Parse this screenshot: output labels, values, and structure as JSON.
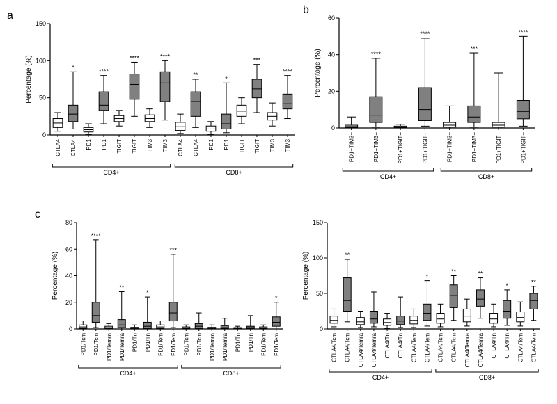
{
  "colors": {
    "bg": "#ffffff",
    "ink": "#000000",
    "box_white": "#ffffff",
    "box_gray": "#808080"
  },
  "typography": {
    "panel_label_fontsize": 16,
    "axis_title_fontsize": 10,
    "tick_fontsize": 9,
    "xcat_fontsize": 8,
    "sig_fontsize": 9
  },
  "panels": {
    "a": {
      "label": "a",
      "type": "boxplot",
      "y_title": "Percentage (%)",
      "ylim": [
        0,
        150
      ],
      "ytick_step": 50,
      "groups": [
        "CD4+",
        "CD8+"
      ],
      "pairs_per_group": 4,
      "categories": [
        "CTLA4",
        "CTLA4",
        "PD1",
        "PD1",
        "TIGIT",
        "TIGIT",
        "TIM3",
        "TIM3",
        "CTLA4",
        "CTLA4",
        "PD1",
        "PD1",
        "TIGIT",
        "TIGIT",
        "TIM3",
        "TIM3"
      ],
      "boxes": [
        {
          "fill": "white",
          "q1": 10,
          "med": 16,
          "q3": 22,
          "lo": 5,
          "hi": 30,
          "sig": ""
        },
        {
          "fill": "gray",
          "q1": 18,
          "med": 28,
          "q3": 40,
          "lo": 8,
          "hi": 85,
          "sig": "*"
        },
        {
          "fill": "white",
          "q1": 4,
          "med": 7,
          "q3": 10,
          "lo": 1,
          "hi": 15,
          "sig": ""
        },
        {
          "fill": "gray",
          "q1": 33,
          "med": 40,
          "q3": 58,
          "lo": 15,
          "hi": 80,
          "sig": "****"
        },
        {
          "fill": "white",
          "q1": 18,
          "med": 22,
          "q3": 26,
          "lo": 12,
          "hi": 33,
          "sig": ""
        },
        {
          "fill": "gray",
          "q1": 48,
          "med": 68,
          "q3": 82,
          "lo": 25,
          "hi": 98,
          "sig": "****"
        },
        {
          "fill": "white",
          "q1": 18,
          "med": 22,
          "q3": 27,
          "lo": 10,
          "hi": 35,
          "sig": ""
        },
        {
          "fill": "gray",
          "q1": 45,
          "med": 70,
          "q3": 85,
          "lo": 20,
          "hi": 100,
          "sig": "****"
        },
        {
          "fill": "white",
          "q1": 6,
          "med": 11,
          "q3": 17,
          "lo": 2,
          "hi": 28,
          "sig": ""
        },
        {
          "fill": "gray",
          "q1": 25,
          "med": 45,
          "q3": 58,
          "lo": 10,
          "hi": 75,
          "sig": "**"
        },
        {
          "fill": "white",
          "q1": 5,
          "med": 8,
          "q3": 12,
          "lo": 1,
          "hi": 18,
          "sig": ""
        },
        {
          "fill": "gray",
          "q1": 8,
          "med": 15,
          "q3": 28,
          "lo": 3,
          "hi": 70,
          "sig": "*"
        },
        {
          "fill": "white",
          "q1": 25,
          "med": 32,
          "q3": 40,
          "lo": 15,
          "hi": 50,
          "sig": ""
        },
        {
          "fill": "gray",
          "q1": 50,
          "med": 62,
          "q3": 75,
          "lo": 30,
          "hi": 95,
          "sig": "***"
        },
        {
          "fill": "white",
          "q1": 20,
          "med": 25,
          "q3": 30,
          "lo": 12,
          "hi": 43,
          "sig": ""
        },
        {
          "fill": "gray",
          "q1": 35,
          "med": 42,
          "q3": 55,
          "lo": 22,
          "hi": 80,
          "sig": "****"
        }
      ]
    },
    "b": {
      "label": "b",
      "type": "boxplot",
      "y_title": "Percentage (%)",
      "ylim": [
        0,
        60
      ],
      "ytick_step": 20,
      "groups": [
        "CD4+",
        "CD8+"
      ],
      "categories": [
        "PD1+TIM3+",
        "PD1+TIM3+",
        "PD1+TIGIT+",
        "PD1+TIGIT+",
        "PD1+TIM3+",
        "PD1+TIM3+",
        "PD1+TIGIT+",
        "PD1+TIGIT+"
      ],
      "boxes": [
        {
          "fill": "white",
          "q1": 0.3,
          "med": 0.8,
          "q3": 1.5,
          "lo": 0,
          "hi": 6,
          "sig": ""
        },
        {
          "fill": "gray",
          "q1": 3,
          "med": 7,
          "q3": 17,
          "lo": 0.5,
          "hi": 38,
          "sig": "****"
        },
        {
          "fill": "white",
          "q1": 0.2,
          "med": 0.5,
          "q3": 1,
          "lo": 0,
          "hi": 2,
          "sig": ""
        },
        {
          "fill": "gray",
          "q1": 4,
          "med": 10,
          "q3": 22,
          "lo": 1,
          "hi": 49,
          "sig": "****"
        },
        {
          "fill": "white",
          "q1": 0.5,
          "med": 1.5,
          "q3": 3,
          "lo": 0,
          "hi": 12,
          "sig": ""
        },
        {
          "fill": "gray",
          "q1": 3,
          "med": 6,
          "q3": 12,
          "lo": 0.5,
          "hi": 41,
          "sig": "***"
        },
        {
          "fill": "white",
          "q1": 0.5,
          "med": 1.5,
          "q3": 3,
          "lo": 0,
          "hi": 30,
          "sig": ""
        },
        {
          "fill": "gray",
          "q1": 5,
          "med": 9,
          "q3": 15,
          "lo": 1,
          "hi": 50,
          "sig": "****"
        }
      ]
    },
    "c_left": {
      "label": "c",
      "type": "boxplot",
      "y_title": "Percentage (%)",
      "ylim": [
        0,
        80
      ],
      "ytick_step": 20,
      "groups": [
        "CD4+",
        "CD8+"
      ],
      "categories": [
        "PD1/Tcm",
        "PD1/Tcm",
        "PD1/Temra",
        "PD1/Temra",
        "PD1/Tn",
        "PD1/Tn",
        "PD1/Tem",
        "PD1/Tem",
        "PD1/Tcm",
        "PD1/Tcm",
        "PD1/Temra",
        "PD1/Temra",
        "PD1/Tn",
        "PD1/Tn",
        "PD1/Tem",
        "PD1/Tem"
      ],
      "boxes": [
        {
          "fill": "white",
          "q1": 0.5,
          "med": 1.5,
          "q3": 3,
          "lo": 0,
          "hi": 6,
          "sig": ""
        },
        {
          "fill": "gray",
          "q1": 5,
          "med": 10,
          "q3": 20,
          "lo": 1,
          "hi": 67,
          "sig": "****"
        },
        {
          "fill": "white",
          "q1": 0.3,
          "med": 1,
          "q3": 2,
          "lo": 0,
          "hi": 4,
          "sig": ""
        },
        {
          "fill": "gray",
          "q1": 1,
          "med": 3,
          "q3": 7,
          "lo": 0,
          "hi": 28,
          "sig": "**"
        },
        {
          "fill": "white",
          "q1": 0.2,
          "med": 0.6,
          "q3": 1.2,
          "lo": 0,
          "hi": 3,
          "sig": ""
        },
        {
          "fill": "gray",
          "q1": 0.5,
          "med": 2,
          "q3": 5,
          "lo": 0,
          "hi": 24,
          "sig": "*"
        },
        {
          "fill": "white",
          "q1": 0.5,
          "med": 1.5,
          "q3": 3,
          "lo": 0,
          "hi": 6,
          "sig": ""
        },
        {
          "fill": "gray",
          "q1": 6,
          "med": 12,
          "q3": 20,
          "lo": 1,
          "hi": 56,
          "sig": "***"
        },
        {
          "fill": "white",
          "q1": 0.3,
          "med": 0.8,
          "q3": 1.5,
          "lo": 0,
          "hi": 3,
          "sig": ""
        },
        {
          "fill": "gray",
          "q1": 0.5,
          "med": 2,
          "q3": 4,
          "lo": 0,
          "hi": 12,
          "sig": ""
        },
        {
          "fill": "white",
          "q1": 0.2,
          "med": 0.6,
          "q3": 1.2,
          "lo": 0,
          "hi": 3,
          "sig": ""
        },
        {
          "fill": "gray",
          "q1": 0.3,
          "med": 1,
          "q3": 2.5,
          "lo": 0,
          "hi": 8,
          "sig": ""
        },
        {
          "fill": "white",
          "q1": 0.2,
          "med": 0.5,
          "q3": 1,
          "lo": 0,
          "hi": 2,
          "sig": ""
        },
        {
          "fill": "gray",
          "q1": 0.3,
          "med": 1,
          "q3": 2,
          "lo": 0,
          "hi": 10,
          "sig": ""
        },
        {
          "fill": "white",
          "q1": 0.3,
          "med": 0.8,
          "q3": 1.5,
          "lo": 0,
          "hi": 3,
          "sig": ""
        },
        {
          "fill": "gray",
          "q1": 2,
          "med": 5,
          "q3": 9,
          "lo": 0,
          "hi": 20,
          "sig": "*"
        }
      ]
    },
    "c_right": {
      "type": "boxplot",
      "y_title": "Percentage (%)",
      "ylim": [
        0,
        150
      ],
      "ytick_step": 50,
      "groups": [
        "CD4+",
        "CD8+"
      ],
      "categories": [
        "CTLA4/Tcm",
        "CTLA4/Tcm",
        "CTLA4/Temra",
        "CTLA4/Temra",
        "CTLA4/Tn",
        "CTLA4/Tn",
        "CTLA4/Tem",
        "CTLA4/Tem",
        "CTLA4/Tcm",
        "CTLA4/Tcm",
        "CTLA4/Temra",
        "CTLA4/Temra",
        "CTLA4/Tn",
        "CTLA4/Tn",
        "CTLA4/Tem",
        "CTLA4/Tem"
      ],
      "boxes": [
        {
          "fill": "white",
          "q1": 8,
          "med": 12,
          "q3": 18,
          "lo": 3,
          "hi": 28,
          "sig": ""
        },
        {
          "fill": "gray",
          "q1": 25,
          "med": 40,
          "q3": 72,
          "lo": 10,
          "hi": 98,
          "sig": "**"
        },
        {
          "fill": "white",
          "q1": 6,
          "med": 10,
          "q3": 16,
          "lo": 2,
          "hi": 25,
          "sig": ""
        },
        {
          "fill": "gray",
          "q1": 8,
          "med": 14,
          "q3": 25,
          "lo": 3,
          "hi": 52,
          "sig": ""
        },
        {
          "fill": "white",
          "q1": 5,
          "med": 9,
          "q3": 14,
          "lo": 1,
          "hi": 22,
          "sig": ""
        },
        {
          "fill": "gray",
          "q1": 6,
          "med": 11,
          "q3": 18,
          "lo": 2,
          "hi": 45,
          "sig": ""
        },
        {
          "fill": "white",
          "q1": 7,
          "med": 12,
          "q3": 18,
          "lo": 2,
          "hi": 28,
          "sig": ""
        },
        {
          "fill": "gray",
          "q1": 12,
          "med": 22,
          "q3": 35,
          "lo": 4,
          "hi": 68,
          "sig": "*"
        },
        {
          "fill": "white",
          "q1": 8,
          "med": 14,
          "q3": 22,
          "lo": 3,
          "hi": 35,
          "sig": ""
        },
        {
          "fill": "gray",
          "q1": 30,
          "med": 47,
          "q3": 62,
          "lo": 12,
          "hi": 75,
          "sig": "**"
        },
        {
          "fill": "white",
          "q1": 10,
          "med": 18,
          "q3": 28,
          "lo": 4,
          "hi": 42,
          "sig": ""
        },
        {
          "fill": "gray",
          "q1": 32,
          "med": 42,
          "q3": 55,
          "lo": 15,
          "hi": 72,
          "sig": "**"
        },
        {
          "fill": "white",
          "q1": 8,
          "med": 14,
          "q3": 22,
          "lo": 3,
          "hi": 35,
          "sig": ""
        },
        {
          "fill": "gray",
          "q1": 15,
          "med": 25,
          "q3": 40,
          "lo": 5,
          "hi": 55,
          "sig": "*"
        },
        {
          "fill": "white",
          "q1": 10,
          "med": 16,
          "q3": 24,
          "lo": 4,
          "hi": 38,
          "sig": ""
        },
        {
          "fill": "gray",
          "q1": 28,
          "med": 40,
          "q3": 50,
          "lo": 12,
          "hi": 60,
          "sig": "**"
        }
      ]
    }
  }
}
